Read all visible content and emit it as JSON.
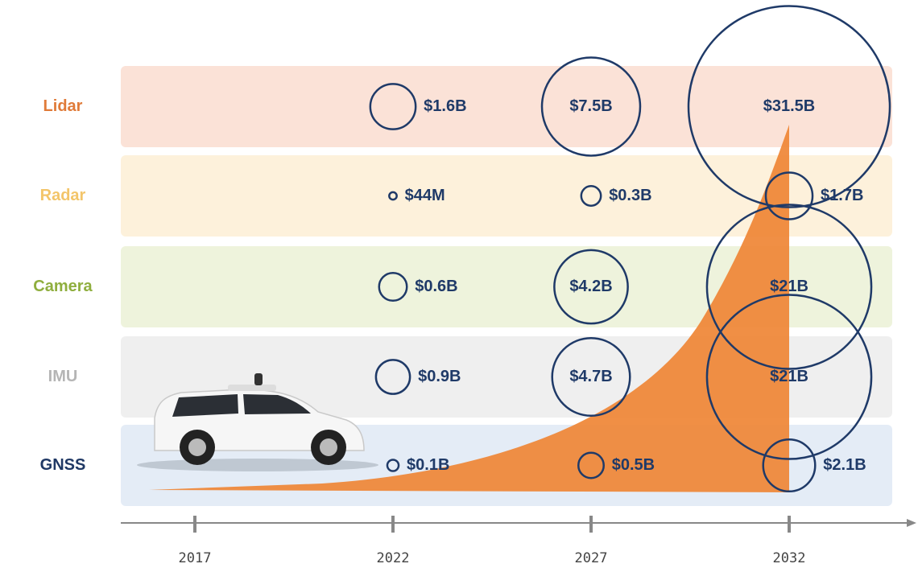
{
  "chart_data": {
    "type": "bubble",
    "xlim": [
      2015,
      2035
    ],
    "xticks": [
      2017,
      2022,
      2027,
      2032
    ],
    "x": [
      2022,
      2027,
      2032
    ],
    "bubble_color": "#1f3a68",
    "series": [
      {
        "name": "Lidar",
        "color": "#e07b39",
        "band_color": "#fbe2d7",
        "values": [
          1.6,
          7.5,
          31.5
        ],
        "value_labels": [
          "$1.6B",
          "$7.5B",
          "$31.5B"
        ]
      },
      {
        "name": "Radar",
        "color": "#f3c56a",
        "band_color": "#fdf1db",
        "values": [
          0.044,
          0.3,
          1.7
        ],
        "value_labels": [
          "$44M",
          "$0.3B",
          "$1.7B"
        ]
      },
      {
        "name": "Camera",
        "color": "#8fae3e",
        "band_color": "#eef3dc",
        "values": [
          0.6,
          4.2,
          21
        ],
        "value_labels": [
          "$0.6B",
          "$4.2B",
          "$21B"
        ]
      },
      {
        "name": "IMU",
        "color": "#b5b5b5",
        "band_color": "#efefef",
        "values": [
          0.9,
          4.7,
          21
        ],
        "value_labels": [
          "$0.9B",
          "$4.7B",
          "$21B"
        ]
      },
      {
        "name": "GNSS",
        "color": "#1f3864",
        "band_color": "#e4ecf6",
        "values": [
          0.1,
          0.5,
          2.1
        ],
        "value_labels": [
          "$0.1B",
          "$0.5B",
          "$2.1B"
        ]
      }
    ]
  }
}
